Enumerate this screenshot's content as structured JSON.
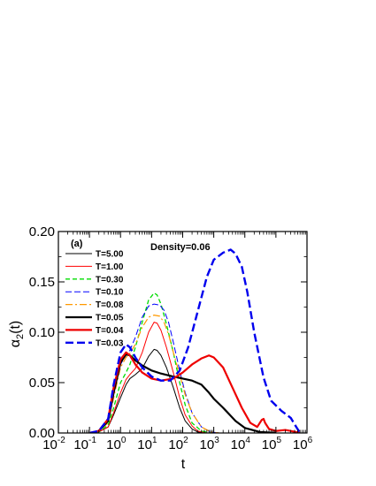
{
  "chart_data": {
    "type": "line",
    "panel_label": "(a)",
    "annotation": "Density=0.06",
    "xlabel": "t",
    "ylabel_main": "α",
    "ylabel_sub": "2",
    "ylabel_tail": "(t)",
    "x_scale": "log",
    "xlim": [
      0.01,
      1000000
    ],
    "ylim": [
      0,
      0.2
    ],
    "legend_position": "top-left",
    "x_ticks": [
      {
        "value": 0.01,
        "base": "10",
        "exp": "-2"
      },
      {
        "value": 0.1,
        "base": "10",
        "exp": "-1"
      },
      {
        "value": 1,
        "base": "10",
        "exp": "0"
      },
      {
        "value": 10,
        "base": "10",
        "exp": "1"
      },
      {
        "value": 100,
        "base": "10",
        "exp": "2"
      },
      {
        "value": 1000,
        "base": "10",
        "exp": "3"
      },
      {
        "value": 10000,
        "base": "10",
        "exp": "4"
      },
      {
        "value": 100000,
        "base": "10",
        "exp": "5"
      },
      {
        "value": 1000000,
        "base": "10",
        "exp": "6"
      }
    ],
    "y_ticks": [
      {
        "value": 0,
        "label": "0.00"
      },
      {
        "value": 0.05,
        "label": "0.05"
      },
      {
        "value": 0.1,
        "label": "0.10"
      },
      {
        "value": 0.15,
        "label": "0.15"
      },
      {
        "value": 0.2,
        "label": "0.20"
      }
    ],
    "series": [
      {
        "name": "T=5.00",
        "color": "#000000",
        "dash": "",
        "width": 1,
        "points": [
          [
            0.1,
            0
          ],
          [
            0.2,
            0.001
          ],
          [
            0.4,
            0.006
          ],
          [
            0.6,
            0.018
          ],
          [
            1,
            0.035
          ],
          [
            1.5,
            0.048
          ],
          [
            2,
            0.054
          ],
          [
            3,
            0.058
          ],
          [
            5,
            0.064
          ],
          [
            8,
            0.076
          ],
          [
            12,
            0.083
          ],
          [
            15,
            0.082
          ],
          [
            20,
            0.077
          ],
          [
            30,
            0.065
          ],
          [
            50,
            0.045
          ],
          [
            80,
            0.025
          ],
          [
            120,
            0.012
          ],
          [
            200,
            0.004
          ],
          [
            300,
            0.001
          ],
          [
            500,
            0
          ]
        ]
      },
      {
        "name": "T=1.00",
        "color": "#ff0000",
        "dash": "",
        "width": 1,
        "points": [
          [
            0.1,
            0
          ],
          [
            0.2,
            0.001
          ],
          [
            0.4,
            0.006
          ],
          [
            0.6,
            0.02
          ],
          [
            1,
            0.04
          ],
          [
            1.5,
            0.053
          ],
          [
            2,
            0.058
          ],
          [
            3,
            0.064
          ],
          [
            5,
            0.08
          ],
          [
            8,
            0.1
          ],
          [
            12,
            0.11
          ],
          [
            15,
            0.109
          ],
          [
            20,
            0.102
          ],
          [
            30,
            0.085
          ],
          [
            50,
            0.06
          ],
          [
            80,
            0.035
          ],
          [
            120,
            0.018
          ],
          [
            200,
            0.007
          ],
          [
            300,
            0.002
          ],
          [
            600,
            0
          ]
        ]
      },
      {
        "name": "T=0.30",
        "color": "#00dd00",
        "dash": "5,3",
        "width": 1.3,
        "points": [
          [
            0.1,
            0
          ],
          [
            0.2,
            0.001
          ],
          [
            0.4,
            0.008
          ],
          [
            0.6,
            0.025
          ],
          [
            1,
            0.05
          ],
          [
            1.5,
            0.06
          ],
          [
            2,
            0.068
          ],
          [
            3,
            0.085
          ],
          [
            5,
            0.11
          ],
          [
            8,
            0.132
          ],
          [
            12,
            0.139
          ],
          [
            15,
            0.137
          ],
          [
            20,
            0.128
          ],
          [
            30,
            0.108
          ],
          [
            50,
            0.08
          ],
          [
            80,
            0.05
          ],
          [
            120,
            0.028
          ],
          [
            200,
            0.01
          ],
          [
            400,
            0.002
          ],
          [
            800,
            0
          ]
        ]
      },
      {
        "name": "T=0.10",
        "color": "#0000ff",
        "dash": "7,3",
        "width": 1,
        "points": [
          [
            0.1,
            0
          ],
          [
            0.2,
            0.002
          ],
          [
            0.4,
            0.012
          ],
          [
            0.6,
            0.04
          ],
          [
            1,
            0.068
          ],
          [
            1.5,
            0.078
          ],
          [
            2,
            0.082
          ],
          [
            3,
            0.095
          ],
          [
            5,
            0.115
          ],
          [
            8,
            0.126
          ],
          [
            12,
            0.128
          ],
          [
            18,
            0.127
          ],
          [
            25,
            0.122
          ],
          [
            35,
            0.11
          ],
          [
            50,
            0.09
          ],
          [
            80,
            0.062
          ],
          [
            120,
            0.04
          ],
          [
            200,
            0.02
          ],
          [
            400,
            0.006
          ],
          [
            800,
            0.001
          ],
          [
            1500,
            0
          ]
        ]
      },
      {
        "name": "T=0.08",
        "color": "#ff9900",
        "dash": "8,3,2,3",
        "width": 1.2,
        "points": [
          [
            0.1,
            0
          ],
          [
            0.2,
            0.002
          ],
          [
            0.4,
            0.01
          ],
          [
            0.6,
            0.035
          ],
          [
            1,
            0.065
          ],
          [
            1.5,
            0.075
          ],
          [
            2,
            0.079
          ],
          [
            3,
            0.088
          ],
          [
            5,
            0.105
          ],
          [
            8,
            0.115
          ],
          [
            12,
            0.117
          ],
          [
            18,
            0.116
          ],
          [
            25,
            0.11
          ],
          [
            35,
            0.098
          ],
          [
            50,
            0.08
          ],
          [
            80,
            0.058
          ],
          [
            120,
            0.038
          ],
          [
            200,
            0.02
          ],
          [
            400,
            0.006
          ],
          [
            800,
            0.001
          ],
          [
            1500,
            0
          ]
        ]
      },
      {
        "name": "T=0.05",
        "color": "#000000",
        "dash": "",
        "width": 2.2,
        "points": [
          [
            0.1,
            0
          ],
          [
            0.2,
            0.002
          ],
          [
            0.4,
            0.012
          ],
          [
            0.6,
            0.04
          ],
          [
            1,
            0.07
          ],
          [
            1.5,
            0.078
          ],
          [
            2,
            0.077
          ],
          [
            3,
            0.072
          ],
          [
            5,
            0.067
          ],
          [
            10,
            0.062
          ],
          [
            20,
            0.059
          ],
          [
            50,
            0.056
          ],
          [
            100,
            0.054
          ],
          [
            200,
            0.052
          ],
          [
            400,
            0.048
          ],
          [
            700,
            0.04
          ],
          [
            1000,
            0.034
          ],
          [
            2000,
            0.025
          ],
          [
            5000,
            0.012
          ],
          [
            10000,
            0.005
          ],
          [
            30000,
            0.001
          ],
          [
            100000,
            0
          ]
        ]
      },
      {
        "name": "T=0.04",
        "color": "#ee0000",
        "dash": "",
        "width": 2.2,
        "points": [
          [
            0.1,
            0
          ],
          [
            0.2,
            0.002
          ],
          [
            0.4,
            0.014
          ],
          [
            0.6,
            0.045
          ],
          [
            1,
            0.073
          ],
          [
            1.5,
            0.08
          ],
          [
            2,
            0.077
          ],
          [
            3,
            0.068
          ],
          [
            5,
            0.06
          ],
          [
            10,
            0.054
          ],
          [
            20,
            0.052
          ],
          [
            50,
            0.054
          ],
          [
            100,
            0.06
          ],
          [
            200,
            0.068
          ],
          [
            400,
            0.074
          ],
          [
            700,
            0.077
          ],
          [
            1000,
            0.075
          ],
          [
            2000,
            0.065
          ],
          [
            4000,
            0.045
          ],
          [
            8000,
            0.025
          ],
          [
            15000,
            0.01
          ],
          [
            25000,
            0.006
          ],
          [
            35000,
            0.013
          ],
          [
            40000,
            0.014
          ],
          [
            45000,
            0.01
          ],
          [
            60000,
            0.004
          ],
          [
            100000,
            0.002
          ],
          [
            200000,
            0.003
          ],
          [
            300000,
            0.002
          ],
          [
            600000,
            0
          ]
        ]
      },
      {
        "name": "T=0.03",
        "color": "#0000ee",
        "dash": "9,4",
        "width": 2.4,
        "points": [
          [
            0.1,
            0
          ],
          [
            0.2,
            0.002
          ],
          [
            0.4,
            0.014
          ],
          [
            0.6,
            0.048
          ],
          [
            1,
            0.08
          ],
          [
            1.5,
            0.088
          ],
          [
            2,
            0.085
          ],
          [
            3,
            0.075
          ],
          [
            5,
            0.065
          ],
          [
            10,
            0.056
          ],
          [
            20,
            0.052
          ],
          [
            40,
            0.052
          ],
          [
            80,
            0.062
          ],
          [
            150,
            0.085
          ],
          [
            300,
            0.12
          ],
          [
            600,
            0.155
          ],
          [
            1000,
            0.172
          ],
          [
            2000,
            0.179
          ],
          [
            3500,
            0.182
          ],
          [
            5000,
            0.178
          ],
          [
            8000,
            0.165
          ],
          [
            12000,
            0.14
          ],
          [
            20000,
            0.1
          ],
          [
            40000,
            0.055
          ],
          [
            70000,
            0.032
          ],
          [
            150000,
            0.022
          ],
          [
            300000,
            0.015
          ],
          [
            450000,
            0.006
          ],
          [
            600000,
            0
          ]
        ]
      }
    ]
  }
}
